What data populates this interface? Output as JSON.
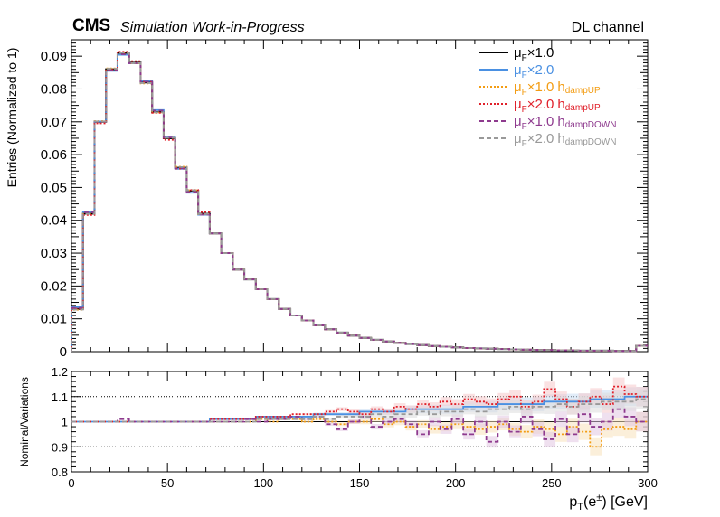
{
  "header": {
    "experiment": "CMS",
    "status": "Simulation Work-in-Progress",
    "channel": "DL channel"
  },
  "legend": {
    "entries": [
      {
        "mu": "μ",
        "sub": "F",
        "rest": "×1.0",
        "h": "",
        "hsub": ""
      },
      {
        "mu": "μ",
        "sub": "F",
        "rest": "×2.0",
        "h": "",
        "hsub": ""
      },
      {
        "mu": "μ",
        "sub": "F",
        "rest": "×1.0",
        "h": "h",
        "hsub": "dampUP"
      },
      {
        "mu": "μ",
        "sub": "F",
        "rest": "×2.0",
        "h": "h",
        "hsub": "dampUP"
      },
      {
        "mu": "μ",
        "sub": "F",
        "rest": "×1.0",
        "h": "h",
        "hsub": "dampDOWN"
      },
      {
        "mu": "μ",
        "sub": "F",
        "rest": "×2.0",
        "h": "h",
        "hsub": "dampDOWN"
      }
    ]
  },
  "chart_data": [
    {
      "type": "line",
      "ylabel": "Entries (Normalized to 1)",
      "xlim": [
        0,
        300
      ],
      "ylim": [
        0,
        0.095
      ],
      "yticks": [
        0,
        0.01,
        0.02,
        0.03,
        0.04,
        0.05,
        0.06,
        0.07,
        0.08,
        0.09
      ],
      "yticklabels": [
        "0",
        "0.01",
        "0.02",
        "0.03",
        "0.04",
        "0.05",
        "0.06",
        "0.07",
        "0.08",
        "0.09"
      ],
      "bin_width": 6,
      "bin_edges_start": 0,
      "values": [
        0.013,
        0.042,
        0.07,
        0.086,
        0.091,
        0.088,
        0.082,
        0.073,
        0.065,
        0.056,
        0.049,
        0.042,
        0.036,
        0.03,
        0.025,
        0.022,
        0.019,
        0.016,
        0.013,
        0.011,
        0.0095,
        0.008,
        0.0068,
        0.0058,
        0.0049,
        0.0042,
        0.0036,
        0.0031,
        0.0027,
        0.0023,
        0.002,
        0.0017,
        0.0015,
        0.0013,
        0.0011,
        0.001,
        0.0009,
        0.0008,
        0.0007,
        0.0006,
        0.0005,
        0.0005,
        0.0004,
        0.0004,
        0.0003,
        0.0003,
        0.0003,
        0.0002,
        0.0002,
        0.0018
      ],
      "series": [
        {
          "color": "#000000",
          "style": "solid"
        },
        {
          "color": "#4a90e2",
          "style": "solid"
        },
        {
          "color": "#f39c12",
          "style": "dotted"
        },
        {
          "color": "#e0202a",
          "style": "dotted"
        },
        {
          "color": "#8e3a8e",
          "style": "dashed"
        },
        {
          "color": "#999999",
          "style": "dashed"
        }
      ]
    },
    {
      "type": "line",
      "xlabel_main": "p",
      "xlabel_sub": "T",
      "xlabel_rest": "(e",
      "xlabel_sup": "±",
      "xlabel_unit": ") [GeV]",
      "ylabel": "Nominal/Variations",
      "xlim": [
        0,
        300
      ],
      "ylim": [
        0.8,
        1.2
      ],
      "xticks": [
        0,
        50,
        100,
        150,
        200,
        250,
        300
      ],
      "xticklabels": [
        "0",
        "50",
        "100",
        "150",
        "200",
        "250",
        "300"
      ],
      "yticks": [
        0.8,
        0.9,
        1.0,
        1.1,
        1.2
      ],
      "yticklabels": [
        "0.8",
        "0.9",
        "1",
        "1.1",
        "1.2"
      ],
      "bin_width": 6,
      "series": [
        {
          "color": "#4a90e2",
          "style": "solid",
          "values": [
            1.0,
            1.0,
            1.0,
            1.0,
            1.0,
            1.0,
            1.0,
            1.0,
            1.0,
            1.0,
            1.0,
            1.0,
            1.01,
            1.01,
            1.01,
            1.01,
            1.02,
            1.02,
            1.02,
            1.02,
            1.02,
            1.03,
            1.03,
            1.03,
            1.03,
            1.04,
            1.04,
            1.04,
            1.04,
            1.05,
            1.05,
            1.05,
            1.05,
            1.05,
            1.06,
            1.06,
            1.06,
            1.07,
            1.07,
            1.07,
            1.07,
            1.08,
            1.08,
            1.08,
            1.08,
            1.09,
            1.09,
            1.09,
            1.1,
            1.1
          ]
        },
        {
          "color": "#f39c12",
          "style": "dotted",
          "values": [
            1.0,
            1.0,
            1.0,
            1.0,
            1.0,
            1.0,
            1.0,
            1.0,
            1.0,
            1.0,
            1.0,
            1.0,
            1.0,
            1.0,
            1.0,
            1.0,
            1.01,
            1.0,
            1.01,
            1.01,
            1.0,
            1.01,
            1.0,
            0.99,
            1.0,
            1.0,
            1.01,
            0.99,
            1.0,
            0.98,
            0.99,
            0.97,
            0.98,
            0.99,
            0.98,
            0.97,
            0.98,
            0.99,
            0.97,
            0.96,
            0.98,
            0.97,
            0.95,
            0.98,
            0.96,
            0.9,
            0.97,
            0.98,
            0.97,
            1.0
          ]
        },
        {
          "color": "#e0202a",
          "style": "dotted",
          "values": [
            1.0,
            1.0,
            1.0,
            1.0,
            1.0,
            1.0,
            1.0,
            1.0,
            1.0,
            1.0,
            1.0,
            1.0,
            1.01,
            1.01,
            1.01,
            1.01,
            1.02,
            1.02,
            1.02,
            1.03,
            1.03,
            1.03,
            1.04,
            1.05,
            1.04,
            1.03,
            1.05,
            1.04,
            1.06,
            1.05,
            1.07,
            1.06,
            1.08,
            1.07,
            1.09,
            1.08,
            1.07,
            1.09,
            1.1,
            1.06,
            1.08,
            1.13,
            1.09,
            1.06,
            1.08,
            1.1,
            1.07,
            1.14,
            1.11,
            1.1
          ]
        },
        {
          "color": "#8e3a8e",
          "style": "dashed",
          "values": [
            1.0,
            1.0,
            1.0,
            1.0,
            1.01,
            1.0,
            1.0,
            1.0,
            1.0,
            1.0,
            1.0,
            1.0,
            1.0,
            1.0,
            1.0,
            1.01,
            1.0,
            1.01,
            1.01,
            1.02,
            1.01,
            1.02,
            0.99,
            0.97,
            1.0,
            1.02,
            0.98,
            1.0,
            1.01,
            0.99,
            0.95,
            1.0,
            0.97,
            1.01,
            0.95,
            1.0,
            0.92,
            1.0,
            0.96,
            1.02,
            0.97,
            0.93,
            1.01,
            0.95,
            1.03,
            0.98,
            1.0,
            1.05,
            1.02,
            1.0
          ]
        },
        {
          "color": "#999999",
          "style": "dashed",
          "values": [
            1.0,
            1.0,
            1.0,
            1.0,
            1.0,
            1.0,
            1.0,
            1.0,
            1.0,
            1.0,
            1.0,
            1.0,
            1.0,
            1.0,
            1.0,
            1.0,
            1.01,
            1.01,
            1.01,
            1.01,
            1.01,
            1.02,
            1.01,
            1.02,
            1.02,
            1.02,
            1.03,
            1.02,
            1.03,
            1.03,
            1.04,
            1.03,
            1.04,
            1.04,
            1.05,
            1.04,
            1.05,
            1.05,
            1.06,
            1.05,
            1.06,
            1.06,
            1.07,
            1.06,
            1.07,
            1.07,
            1.08,
            1.08,
            1.08,
            1.09
          ]
        }
      ],
      "reference_line": 1.0,
      "grid_lines": [
        0.9,
        1.1
      ]
    }
  ]
}
